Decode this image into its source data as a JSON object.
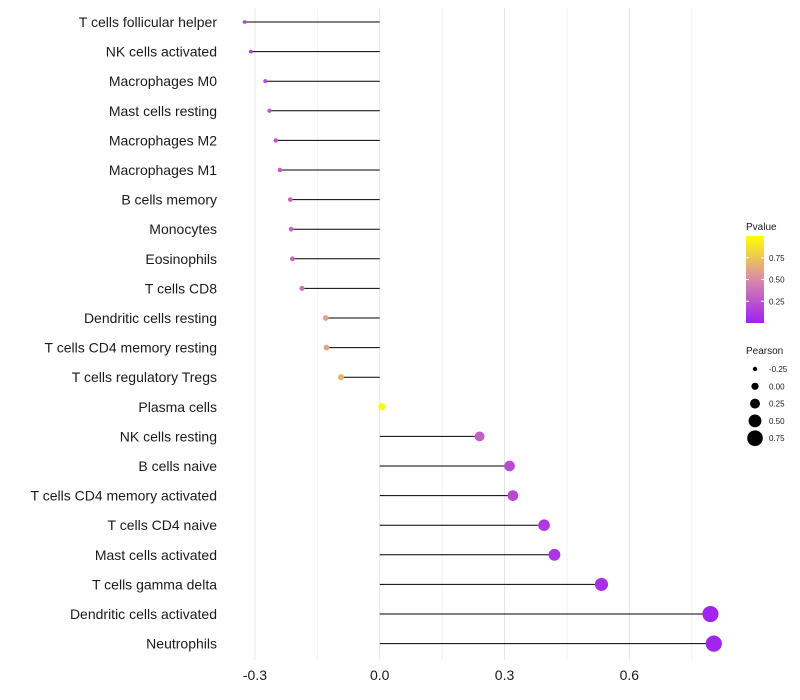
{
  "chart_data": {
    "type": "lollipop",
    "categories": [
      "T cells follicular helper",
      "NK cells activated",
      "Macrophages M0",
      "Mast cells resting",
      "Macrophages M2",
      "Macrophages M1",
      "B cells memory",
      "Monocytes",
      "Eosinophils",
      "T cells CD8",
      "Dendritic cells resting",
      "T cells CD4 memory resting",
      "T cells regulatory  Tregs",
      "Plasma cells",
      "NK cells resting",
      "B cells naive",
      "T cells CD4 memory activated",
      "T cells CD4 naive",
      "Mast cells activated",
      "T cells gamma delta",
      "Dendritic cells activated",
      "Neutrophils"
    ],
    "values": [
      -0.325,
      -0.31,
      -0.275,
      -0.265,
      -0.25,
      -0.24,
      -0.215,
      -0.213,
      -0.21,
      -0.187,
      -0.13,
      -0.128,
      -0.093,
      0.005,
      0.24,
      0.312,
      0.32,
      0.395,
      0.42,
      0.533,
      0.795,
      0.803
    ],
    "pvalues": [
      0.12,
      0.15,
      0.22,
      0.25,
      0.26,
      0.28,
      0.33,
      0.34,
      0.34,
      0.38,
      0.6,
      0.6,
      0.68,
      0.99,
      0.3,
      0.2,
      0.2,
      0.12,
      0.11,
      0.07,
      0.02,
      0.02
    ],
    "xlim": [
      -0.36,
      0.83
    ],
    "xticks": [
      -0.3,
      0.0,
      0.3,
      0.6
    ],
    "xtick_labels": [
      "-0.3",
      "0.0",
      "0.3",
      "0.6"
    ],
    "grid": true,
    "legend_color": {
      "title": "Pvalue",
      "tick_values": [
        0.75,
        0.5,
        0.25
      ],
      "tick_labels": [
        "0.75",
        "0.50",
        "0.25"
      ],
      "range": [
        0.0,
        1.0
      ],
      "low_color": "#a020f0",
      "mid_color": "#d98aa8",
      "high_color": "#ffff00"
    },
    "legend_size": {
      "title": "Pearson",
      "values": [
        -0.25,
        0.0,
        0.25,
        0.5,
        0.75
      ],
      "labels": [
        "-0.25",
        "0.00",
        "0.25",
        "0.50",
        "0.75"
      ]
    },
    "legend_placement": "right"
  }
}
